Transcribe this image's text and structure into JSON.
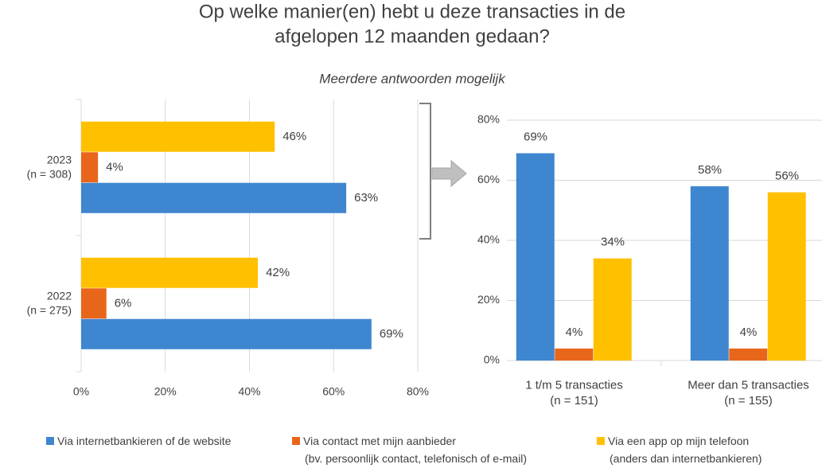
{
  "title": "Op welke manier(en) hebt u deze transacties in de\nafgelopen 12 maanden gedaan?",
  "subtitle": "Meerdere antwoorden mogelijk",
  "chart_data": [
    {
      "type": "barh",
      "categories": [
        "2023\n(n = 308)",
        "2022\n(n = 275)"
      ],
      "series": [
        {
          "name": "Via internetbankieren of de website",
          "color": "#3f86d0",
          "values": [
            63,
            69
          ],
          "value_labels": [
            "63%",
            "69%"
          ]
        },
        {
          "name": "Via contact met mijn aanbieder\n(bv. persoonlijk contact, telefonisch of e-mail)",
          "color": "#e8661a",
          "values": [
            4,
            6
          ],
          "value_labels": [
            "4%",
            "6%"
          ]
        },
        {
          "name": "Via een app op mijn telefoon\n(anders dan internetbankieren)",
          "color": "#ffc000",
          "values": [
            46,
            42
          ],
          "value_labels": [
            "46%",
            "42%"
          ]
        }
      ],
      "xlim": [
        0,
        80
      ],
      "xticks": [
        {
          "value": 0,
          "label": "0%"
        },
        {
          "value": 20,
          "label": "20%"
        },
        {
          "value": 40,
          "label": "40%"
        },
        {
          "value": 60,
          "label": "60%"
        },
        {
          "value": 80,
          "label": "80%"
        }
      ],
      "grid": true
    },
    {
      "type": "bar",
      "categories": [
        "1 t/m 5 transacties\n(n = 151)",
        "Meer dan 5 transacties\n(n = 155)"
      ],
      "series": [
        {
          "color": "#3f86d0",
          "values": [
            69,
            58
          ],
          "value_labels": [
            "69%",
            "58%"
          ]
        },
        {
          "color": "#e8661a",
          "values": [
            4,
            4
          ],
          "value_labels": [
            "4%",
            "4%"
          ]
        },
        {
          "color": "#ffc000",
          "values": [
            34,
            56
          ],
          "value_labels": [
            "34%",
            "56%"
          ]
        }
      ],
      "ylim": [
        0,
        80
      ],
      "yticks": [
        {
          "value": 0,
          "label": "0%"
        },
        {
          "value": 20,
          "label": "20%"
        },
        {
          "value": 40,
          "label": "40%"
        },
        {
          "value": 60,
          "label": "60%"
        },
        {
          "value": 80,
          "label": "80%"
        }
      ],
      "grid": true
    }
  ]
}
